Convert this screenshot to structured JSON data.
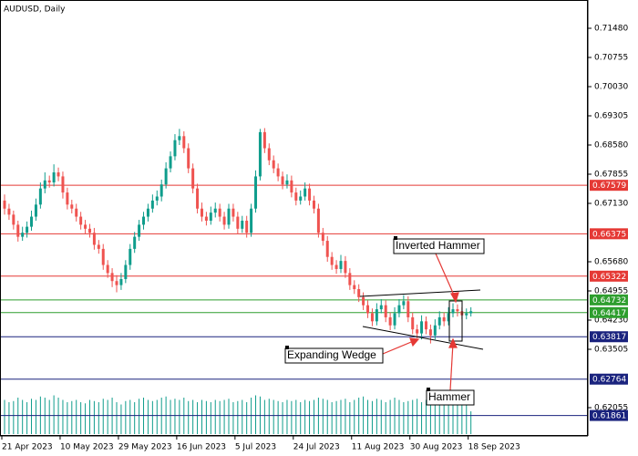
{
  "chart_data": {
    "type": "candlestick",
    "title": "AUDUSD, Daily",
    "categories": [
      "21 Apr 2023",
      null,
      null,
      null,
      null,
      null,
      null,
      null,
      null,
      null,
      null,
      null,
      null,
      "10 May 2023",
      null,
      null,
      null,
      null,
      null,
      null,
      null,
      null,
      null,
      null,
      null,
      null,
      "29 May 2023",
      null,
      null,
      null,
      null,
      null,
      null,
      null,
      null,
      null,
      null,
      null,
      null,
      "16 Jun 2023",
      null,
      null,
      null,
      null,
      null,
      null,
      null,
      null,
      null,
      null,
      null,
      null,
      "5 Jul 2023",
      null,
      null,
      null,
      null,
      null,
      null,
      null,
      null,
      null,
      null,
      null,
      null,
      "24 Jul 2023",
      null,
      null,
      null,
      null,
      null,
      null,
      null,
      null,
      null,
      null,
      null,
      null,
      "11 Aug 2023",
      null,
      null,
      null,
      null,
      null,
      null,
      null,
      null,
      null,
      null,
      null,
      null,
      "30 Aug 2023",
      null,
      null,
      null,
      null,
      null,
      null,
      null,
      null,
      null,
      null,
      null,
      null,
      "18 Sep 2023"
    ],
    "ohlc": [
      [
        0.672,
        0.6735,
        0.6685,
        0.67
      ],
      [
        0.67,
        0.6712,
        0.6672,
        0.6685
      ],
      [
        0.6685,
        0.6695,
        0.6648,
        0.666
      ],
      [
        0.666,
        0.667,
        0.6618,
        0.663
      ],
      [
        0.663,
        0.6655,
        0.662,
        0.664
      ],
      [
        0.664,
        0.6668,
        0.6628,
        0.6655
      ],
      [
        0.6655,
        0.6695,
        0.6645,
        0.668
      ],
      [
        0.668,
        0.6725,
        0.667,
        0.671
      ],
      [
        0.671,
        0.6765,
        0.67,
        0.675
      ],
      [
        0.675,
        0.679,
        0.6738,
        0.677
      ],
      [
        0.677,
        0.6782,
        0.6752,
        0.6765
      ],
      [
        0.6765,
        0.681,
        0.6755,
        0.679
      ],
      [
        0.679,
        0.6802,
        0.6768,
        0.678
      ],
      [
        0.678,
        0.6792,
        0.6725,
        0.674
      ],
      [
        0.674,
        0.6752,
        0.6698,
        0.671
      ],
      [
        0.671,
        0.6722,
        0.6688,
        0.67
      ],
      [
        0.67,
        0.6712,
        0.6668,
        0.668
      ],
      [
        0.668,
        0.6692,
        0.6648,
        0.666
      ],
      [
        0.666,
        0.6672,
        0.6638,
        0.665
      ],
      [
        0.665,
        0.6662,
        0.6628,
        0.664
      ],
      [
        0.664,
        0.6652,
        0.6598,
        0.661
      ],
      [
        0.661,
        0.6622,
        0.6588,
        0.66
      ],
      [
        0.66,
        0.6612,
        0.6548,
        0.656
      ],
      [
        0.656,
        0.6572,
        0.6528,
        0.654
      ],
      [
        0.654,
        0.6552,
        0.6505,
        0.652
      ],
      [
        0.652,
        0.6535,
        0.6492,
        0.651
      ],
      [
        0.651,
        0.654,
        0.6498,
        0.6525
      ],
      [
        0.6525,
        0.6572,
        0.6515,
        0.656
      ],
      [
        0.656,
        0.6612,
        0.6548,
        0.66
      ],
      [
        0.66,
        0.6642,
        0.659,
        0.663
      ],
      [
        0.663,
        0.6672,
        0.662,
        0.666
      ],
      [
        0.666,
        0.6692,
        0.6648,
        0.668
      ],
      [
        0.668,
        0.6712,
        0.6668,
        0.67
      ],
      [
        0.67,
        0.6735,
        0.669,
        0.672
      ],
      [
        0.672,
        0.6745,
        0.6708,
        0.673
      ],
      [
        0.673,
        0.6772,
        0.6718,
        0.676
      ],
      [
        0.676,
        0.6815,
        0.675,
        0.68
      ],
      [
        0.68,
        0.6842,
        0.679,
        0.683
      ],
      [
        0.683,
        0.6885,
        0.682,
        0.687
      ],
      [
        0.687,
        0.6898,
        0.6858,
        0.688
      ],
      [
        0.688,
        0.6892,
        0.6838,
        0.685
      ],
      [
        0.685,
        0.6862,
        0.6788,
        0.68
      ],
      [
        0.68,
        0.6812,
        0.6738,
        0.675
      ],
      [
        0.675,
        0.6762,
        0.6688,
        0.67
      ],
      [
        0.67,
        0.6715,
        0.6668,
        0.668
      ],
      [
        0.668,
        0.6692,
        0.6658,
        0.667
      ],
      [
        0.667,
        0.6705,
        0.666,
        0.669
      ],
      [
        0.669,
        0.6715,
        0.6678,
        0.67
      ],
      [
        0.67,
        0.6712,
        0.6668,
        0.668
      ],
      [
        0.668,
        0.6692,
        0.6648,
        0.666
      ],
      [
        0.666,
        0.6712,
        0.665,
        0.67
      ],
      [
        0.67,
        0.6712,
        0.6668,
        0.668
      ],
      [
        0.668,
        0.6692,
        0.6638,
        0.665
      ],
      [
        0.665,
        0.6682,
        0.664,
        0.667
      ],
      [
        0.667,
        0.6682,
        0.6628,
        0.664
      ],
      [
        0.664,
        0.6712,
        0.663,
        0.67
      ],
      [
        0.67,
        0.6795,
        0.669,
        0.678
      ],
      [
        0.678,
        0.6898,
        0.677,
        0.689
      ],
      [
        0.689,
        0.69,
        0.6838,
        0.685
      ],
      [
        0.685,
        0.6862,
        0.6808,
        0.682
      ],
      [
        0.682,
        0.6832,
        0.6788,
        0.68
      ],
      [
        0.68,
        0.6812,
        0.6768,
        0.678
      ],
      [
        0.678,
        0.6792,
        0.6748,
        0.676
      ],
      [
        0.676,
        0.6785,
        0.675,
        0.677
      ],
      [
        0.677,
        0.6782,
        0.6728,
        0.674
      ],
      [
        0.674,
        0.6752,
        0.6708,
        0.672
      ],
      [
        0.672,
        0.6745,
        0.671,
        0.673
      ],
      [
        0.673,
        0.6765,
        0.672,
        0.675
      ],
      [
        0.675,
        0.6762,
        0.6708,
        0.672
      ],
      [
        0.672,
        0.6732,
        0.6688,
        0.67
      ],
      [
        0.67,
        0.6712,
        0.6628,
        0.664
      ],
      [
        0.664,
        0.6652,
        0.6608,
        0.662
      ],
      [
        0.662,
        0.6632,
        0.6568,
        0.658
      ],
      [
        0.658,
        0.6592,
        0.6548,
        0.656
      ],
      [
        0.656,
        0.6572,
        0.6538,
        0.655
      ],
      [
        0.655,
        0.6585,
        0.654,
        0.657
      ],
      [
        0.657,
        0.6582,
        0.6528,
        0.654
      ],
      [
        0.654,
        0.6552,
        0.6498,
        0.651
      ],
      [
        0.651,
        0.6522,
        0.6488,
        0.65
      ],
      [
        0.65,
        0.6512,
        0.6468,
        0.648
      ],
      [
        0.648,
        0.6492,
        0.6448,
        0.646
      ],
      [
        0.646,
        0.6472,
        0.6428,
        0.644
      ],
      [
        0.644,
        0.6452,
        0.6408,
        0.642
      ],
      [
        0.642,
        0.6465,
        0.641,
        0.645
      ],
      [
        0.645,
        0.6475,
        0.644,
        0.646
      ],
      [
        0.646,
        0.6472,
        0.6418,
        0.643
      ],
      [
        0.643,
        0.6442,
        0.6398,
        0.641
      ],
      [
        0.641,
        0.6455,
        0.64,
        0.644
      ],
      [
        0.644,
        0.6475,
        0.643,
        0.646
      ],
      [
        0.646,
        0.6485,
        0.645,
        0.647
      ],
      [
        0.647,
        0.6482,
        0.6418,
        0.643
      ],
      [
        0.643,
        0.6442,
        0.6388,
        0.64
      ],
      [
        0.64,
        0.6412,
        0.6378,
        0.639
      ],
      [
        0.639,
        0.6435,
        0.6375,
        0.642
      ],
      [
        0.642,
        0.6432,
        0.6388,
        0.64
      ],
      [
        0.64,
        0.6412,
        0.6365,
        0.6385
      ],
      [
        0.6385,
        0.6425,
        0.6375,
        0.641
      ],
      [
        0.641,
        0.6445,
        0.64,
        0.643
      ],
      [
        0.643,
        0.6442,
        0.6408,
        0.642
      ],
      [
        0.642,
        0.6455,
        0.641,
        0.644
      ],
      [
        0.644,
        0.6465,
        0.643,
        0.645
      ],
      [
        0.645,
        0.6462,
        0.6432,
        0.6445
      ],
      [
        0.6445,
        0.6455,
        0.6425,
        0.6435
      ],
      [
        0.6435,
        0.6452,
        0.6425,
        0.644
      ],
      [
        0.644,
        0.6455,
        0.6432,
        0.6445
      ]
    ],
    "volumes": [
      150,
      140,
      145,
      160,
      150,
      140,
      155,
      150,
      165,
      160,
      150,
      170,
      160,
      150,
      140,
      145,
      150,
      140,
      135,
      150,
      145,
      140,
      155,
      150,
      160,
      140,
      130,
      145,
      150,
      140,
      155,
      160,
      150,
      145,
      150,
      160,
      165,
      150,
      155,
      150,
      160,
      145,
      150,
      140,
      150,
      145,
      140,
      150,
      145,
      150,
      155,
      140,
      145,
      150,
      140,
      160,
      170,
      165,
      150,
      155,
      150,
      145,
      140,
      150,
      145,
      150,
      140,
      150,
      145,
      150,
      160,
      155,
      150,
      140,
      145,
      150,
      155,
      140,
      150,
      160,
      165,
      150,
      145,
      155,
      150,
      140,
      150,
      160,
      150,
      140,
      145,
      150,
      155,
      140,
      150,
      145,
      140,
      150,
      160,
      140,
      150,
      145,
      140,
      130,
      100
    ],
    "up_color": "#0f9d8c",
    "down_color": "#ef5350",
    "volume_color": "#0f9d8c",
    "ylim": [
      0.72182,
      0.61353
    ],
    "yticks": [
      {
        "value": 0.7148,
        "label": "0.71480"
      },
      {
        "value": 0.70755,
        "label": "0.70755"
      },
      {
        "value": 0.7003,
        "label": "0.70030"
      },
      {
        "value": 0.69305,
        "label": "0.69305"
      },
      {
        "value": 0.6858,
        "label": "0.68580"
      },
      {
        "value": 0.67855,
        "label": "0.67855"
      },
      {
        "value": 0.6713,
        "label": "0.67130"
      },
      {
        "value": 0.6568,
        "label": "0.65680"
      },
      {
        "value": 0.64955,
        "label": "0.64955"
      },
      {
        "value": 0.6423,
        "label": "0.64230"
      },
      {
        "value": 0.63505,
        "label": "0.63505"
      },
      {
        "value": 0.62055,
        "label": "0.62055"
      }
    ],
    "levels": [
      {
        "value": 0.67579,
        "color": "#e53935"
      },
      {
        "value": 0.66375,
        "color": "#e53935"
      },
      {
        "value": 0.65322,
        "color": "#e53935"
      },
      {
        "value": 0.64732,
        "color": "#2e9e2e"
      },
      {
        "value": 0.64417,
        "color": "#2e9e2e"
      },
      {
        "value": 0.63817,
        "color": "#1a237e"
      },
      {
        "value": 0.62764,
        "color": "#1a237e"
      },
      {
        "value": 0.61861,
        "color": "#1a237e"
      }
    ],
    "annotations": [
      "Inverted Hammer",
      "Expanding Wedge",
      "Hammer"
    ]
  }
}
